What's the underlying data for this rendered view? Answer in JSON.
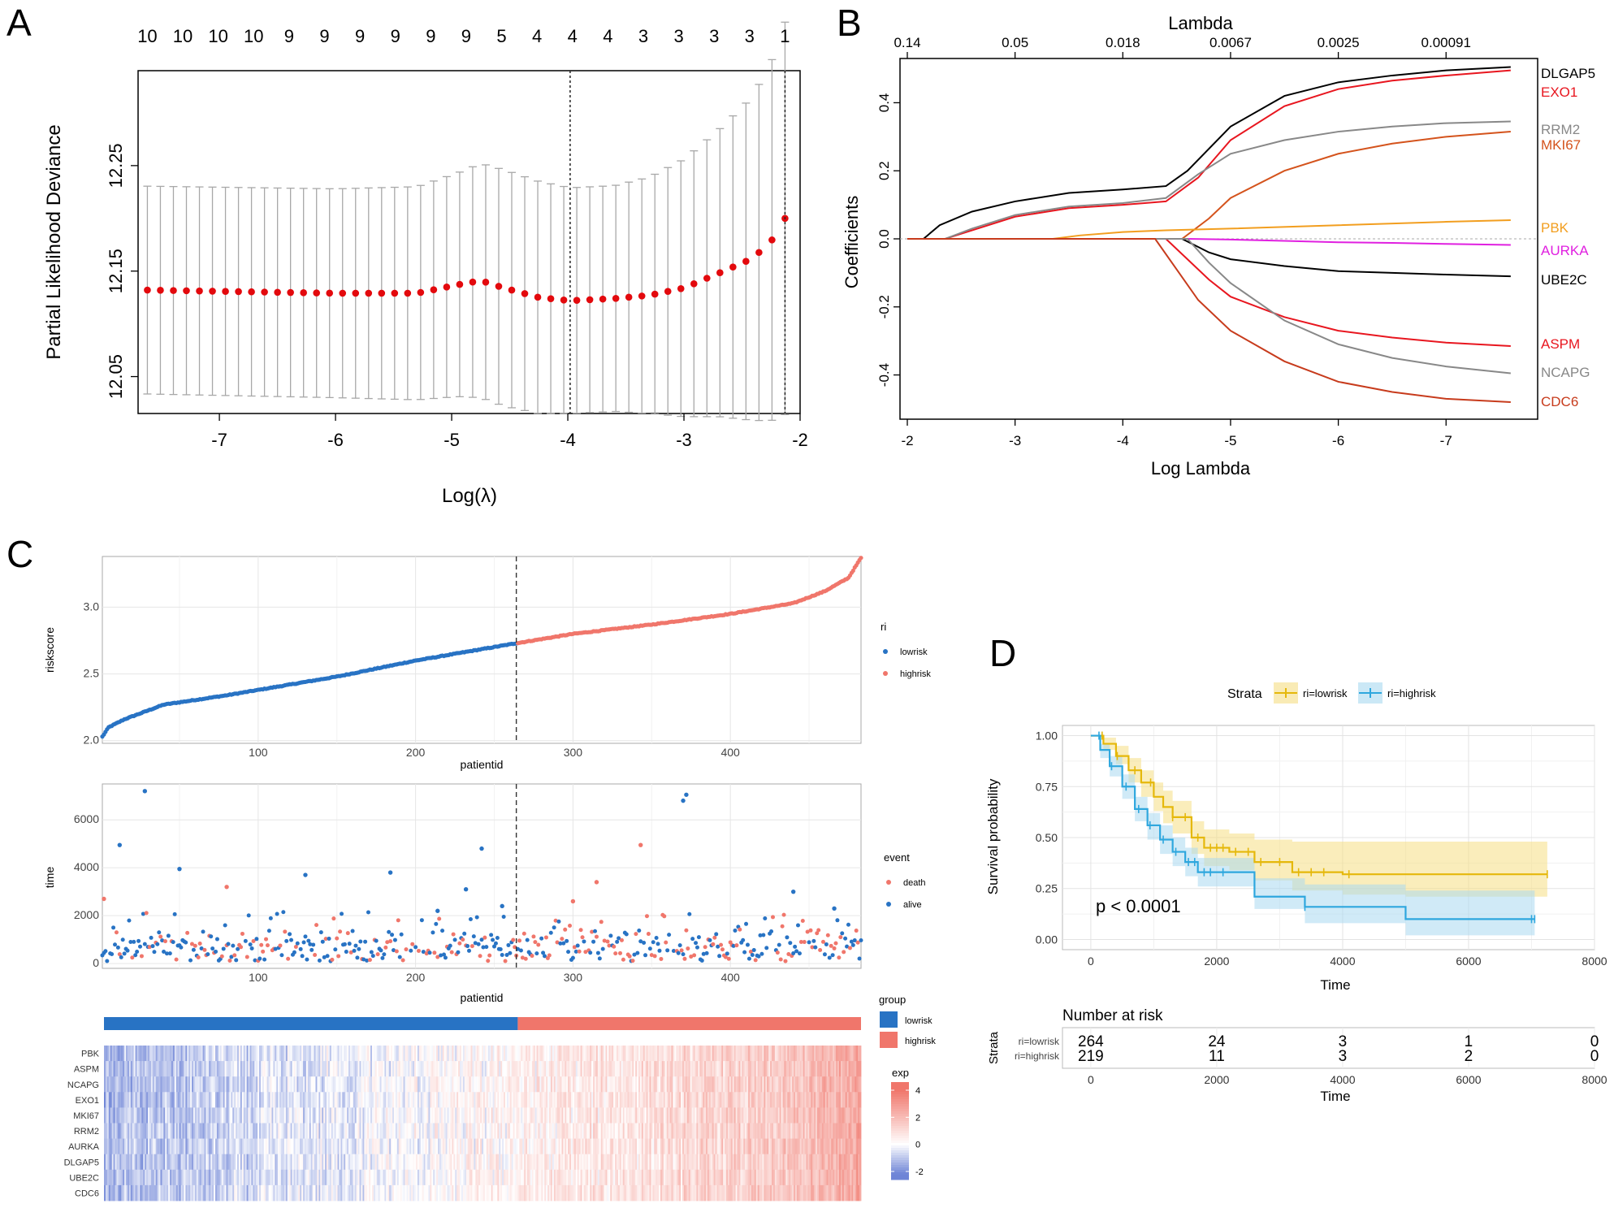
{
  "panels": {
    "a": "A",
    "b": "B",
    "c": "C",
    "d": "D"
  },
  "chart_data": [
    {
      "id": "A",
      "type": "scatter",
      "subtype": "error-bar",
      "title": "",
      "xlabel": "Log(λ)",
      "ylabel": "Partial Likelihood Deviance",
      "xlim": [
        -7.7,
        -2.0
      ],
      "ylim": [
        12.015,
        12.34
      ],
      "xticks": [
        -7,
        -6,
        -5,
        -4,
        -3,
        -2
      ],
      "yticks": [
        12.05,
        12.15,
        12.25
      ],
      "yticklabels": [
        "12.05",
        "12.15",
        "12.25"
      ],
      "top_counts": [
        "10",
        "10",
        "10",
        "10",
        "9",
        "9",
        "9",
        "9",
        "9",
        "9",
        "5",
        "4",
        "4",
        "4",
        "3",
        "3",
        "3",
        "3",
        "1"
      ],
      "vlines": [
        -3.98,
        -2.13
      ],
      "x_start": -7.62,
      "x_end": -2.13,
      "n_points": 50,
      "anchors_x": [
        -7.62,
        -6.0,
        -5.3,
        -4.95,
        -4.75,
        -4.55,
        -4.25,
        -3.98,
        -3.6,
        -3.3,
        -3.0,
        -2.7,
        -2.45,
        -2.3,
        -2.2,
        -2.13
      ],
      "anchors_mean": [
        12.132,
        12.129,
        12.129,
        12.137,
        12.141,
        12.134,
        12.125,
        12.122,
        12.124,
        12.127,
        12.134,
        12.148,
        12.16,
        12.172,
        12.185,
        12.2
      ],
      "anchors_err": [
        0.0985,
        0.099,
        0.101,
        0.106,
        0.111,
        0.112,
        0.11,
        0.107,
        0.107,
        0.112,
        0.122,
        0.136,
        0.151,
        0.164,
        0.176,
        0.186
      ]
    },
    {
      "id": "B",
      "type": "line",
      "title": "",
      "xlabel": "Log Lambda",
      "ylabel": "Coefficients",
      "top_axis_label": "Lambda",
      "xlim": [
        -2.0,
        -7.85
      ],
      "ylim": [
        -0.53,
        0.53
      ],
      "xticks": [
        -2,
        -3,
        -4,
        -5,
        -6,
        -7
      ],
      "yticks": [
        -0.4,
        -0.2,
        0.0,
        0.2,
        0.4
      ],
      "yticklabels": [
        "-0.4",
        "-0.2",
        "0.0",
        "0.2",
        "0.4"
      ],
      "top_ticks": [
        -2.0,
        -3.0,
        -4.0,
        -5.0,
        -6.0,
        -7.0
      ],
      "top_ticklabels": [
        "0.14",
        "0.05",
        "0.018",
        "0.0067",
        "0.0025",
        "0.00091"
      ],
      "series": [
        {
          "name": "DLGAP5",
          "color": "#000000",
          "x": [
            -2.15,
            -2.3,
            -2.6,
            -3.0,
            -3.5,
            -4.0,
            -4.4,
            -4.6,
            -5.0,
            -5.5,
            -6.0,
            -6.5,
            -7.0,
            -7.6
          ],
          "y": [
            0,
            0.04,
            0.08,
            0.11,
            0.135,
            0.145,
            0.155,
            0.2,
            0.33,
            0.42,
            0.46,
            0.48,
            0.495,
            0.505
          ]
        },
        {
          "name": "EXO1",
          "color": "#e8161f",
          "x": [
            -2.35,
            -2.6,
            -3.0,
            -3.5,
            -4.0,
            -4.4,
            -4.7,
            -5.0,
            -5.5,
            -6.0,
            -6.5,
            -7.0,
            -7.6
          ],
          "y": [
            0,
            0.025,
            0.065,
            0.09,
            0.1,
            0.11,
            0.18,
            0.29,
            0.39,
            0.44,
            0.465,
            0.48,
            0.495
          ]
        },
        {
          "name": "RRM2",
          "color": "#888888",
          "x": [
            -2.35,
            -2.6,
            -3.0,
            -3.5,
            -4.0,
            -4.4,
            -4.7,
            -5.0,
            -5.5,
            -6.0,
            -6.5,
            -7.0,
            -7.6
          ],
          "y": [
            0,
            0.03,
            0.07,
            0.095,
            0.105,
            0.12,
            0.19,
            0.25,
            0.29,
            0.315,
            0.33,
            0.34,
            0.345
          ]
        },
        {
          "name": "MKI67",
          "color": "#d4531c",
          "x": [
            -4.55,
            -4.8,
            -5.0,
            -5.5,
            -6.0,
            -6.5,
            -7.0,
            -7.6
          ],
          "y": [
            0,
            0.06,
            0.12,
            0.2,
            0.25,
            0.28,
            0.3,
            0.315
          ]
        },
        {
          "name": "PBK",
          "color": "#f29e1f",
          "x": [
            -3.35,
            -3.6,
            -4.0,
            -4.4,
            -5.0,
            -6.0,
            -7.0,
            -7.6
          ],
          "y": [
            0,
            0.01,
            0.02,
            0.025,
            0.03,
            0.04,
            0.05,
            0.055
          ]
        },
        {
          "name": "AURKA",
          "color": "#e020e0",
          "x": [
            -4.6,
            -5.0,
            -5.5,
            -6.0,
            -6.5,
            -7.0,
            -7.6
          ],
          "y": [
            0,
            -0.002,
            -0.006,
            -0.01,
            -0.012,
            -0.015,
            -0.018
          ]
        },
        {
          "name": "UBE2C",
          "color": "#000000",
          "x": [
            -4.55,
            -4.8,
            -5.0,
            -5.5,
            -6.0,
            -6.5,
            -7.0,
            -7.6
          ],
          "y": [
            0,
            -0.04,
            -0.06,
            -0.08,
            -0.095,
            -0.1,
            -0.105,
            -0.11
          ]
        },
        {
          "name": "ASPM",
          "color": "#e8161f",
          "x": [
            -4.4,
            -4.6,
            -4.8,
            -5.0,
            -5.5,
            -6.0,
            -6.5,
            -7.0,
            -7.6
          ],
          "y": [
            0,
            -0.06,
            -0.12,
            -0.17,
            -0.23,
            -0.27,
            -0.29,
            -0.305,
            -0.315
          ]
        },
        {
          "name": "NCAPG",
          "color": "#888888",
          "x": [
            -4.6,
            -4.8,
            -5.0,
            -5.5,
            -6.0,
            -6.5,
            -7.0,
            -7.6
          ],
          "y": [
            0,
            -0.07,
            -0.13,
            -0.24,
            -0.31,
            -0.35,
            -0.375,
            -0.395
          ]
        },
        {
          "name": "CDC6",
          "color": "#c73b1c",
          "x": [
            -4.3,
            -4.5,
            -4.7,
            -5.0,
            -5.5,
            -6.0,
            -6.5,
            -7.0,
            -7.6
          ],
          "y": [
            0,
            -0.09,
            -0.18,
            -0.27,
            -0.36,
            -0.42,
            -0.45,
            -0.47,
            -0.48
          ]
        }
      ]
    },
    {
      "id": "C-top",
      "type": "scatter",
      "xlabel": "patientid",
      "ylabel": "riskscore",
      "xlim": [
        1,
        483
      ],
      "ylim": [
        1.98,
        3.38
      ],
      "xticks": [
        100,
        200,
        300,
        400
      ],
      "yticks": [
        2.0,
        2.5,
        3.0
      ],
      "yticklabels": [
        "2.0",
        "2.5",
        "3.0"
      ],
      "cutoff": 264,
      "legend_title": "ri",
      "legend": [
        {
          "label": "lowrisk",
          "color": "#2873c4"
        },
        {
          "label": "highrisk",
          "color": "#f0766b"
        }
      ],
      "anchors_x": [
        1,
        5,
        15,
        40,
        80,
        150,
        200,
        264,
        300,
        350,
        400,
        440,
        460,
        475,
        483
      ],
      "anchors_y": [
        2.03,
        2.1,
        2.16,
        2.27,
        2.34,
        2.48,
        2.6,
        2.73,
        2.8,
        2.87,
        2.95,
        3.03,
        3.12,
        3.22,
        3.37
      ]
    },
    {
      "id": "C-middle",
      "type": "scatter",
      "xlabel": "patientid",
      "ylabel": "time",
      "xlim": [
        1,
        483
      ],
      "ylim": [
        -200,
        7500
      ],
      "xticks": [
        100,
        200,
        300,
        400
      ],
      "yticks": [
        0,
        2000,
        4000,
        6000
      ],
      "yticklabels": [
        "0",
        "2000",
        "4000",
        "6000"
      ],
      "cutoff": 264,
      "legend_title": "event",
      "legend": [
        {
          "label": "death",
          "color": "#f0766b"
        },
        {
          "label": "alive",
          "color": "#2873c4"
        }
      ],
      "highlights": [
        {
          "x": 28,
          "y": 7200,
          "event": "alive"
        },
        {
          "x": 372,
          "y": 7050,
          "event": "alive"
        },
        {
          "x": 370,
          "y": 6800,
          "event": "alive"
        },
        {
          "x": 12,
          "y": 4950,
          "event": "alive"
        },
        {
          "x": 343,
          "y": 4950,
          "event": "death"
        },
        {
          "x": 242,
          "y": 4800,
          "event": "alive"
        },
        {
          "x": 50,
          "y": 3950,
          "event": "alive"
        },
        {
          "x": 184,
          "y": 3800,
          "event": "alive"
        },
        {
          "x": 130,
          "y": 3700,
          "event": "alive"
        },
        {
          "x": 315,
          "y": 3400,
          "event": "death"
        },
        {
          "x": 80,
          "y": 3200,
          "event": "death"
        },
        {
          "x": 232,
          "y": 3100,
          "event": "alive"
        },
        {
          "x": 440,
          "y": 3000,
          "event": "alive"
        },
        {
          "x": 2,
          "y": 2700,
          "event": "death"
        },
        {
          "x": 300,
          "y": 2600,
          "event": "death"
        },
        {
          "x": 255,
          "y": 2400,
          "event": "alive"
        },
        {
          "x": 466,
          "y": 2300,
          "event": "alive"
        },
        {
          "x": 214,
          "y": 2200,
          "event": "alive"
        }
      ]
    },
    {
      "id": "C-heatmap",
      "type": "heatmap",
      "rows": [
        "PBK",
        "ASPM",
        "NCAPG",
        "EXO1",
        "MKI67",
        "RRM2",
        "AURKA",
        "DLGAP5",
        "UBE2C",
        "CDC6"
      ],
      "group_title": "group",
      "groups": [
        {
          "label": "lowrisk",
          "color": "#2873c4"
        },
        {
          "label": "highrisk",
          "color": "#f0766b"
        }
      ],
      "cutoff": 264,
      "n_columns": 483,
      "colorbar_title": "exp",
      "colorbar_ticks": [
        "4",
        "2",
        "0",
        "-2"
      ],
      "colorbar_range": [
        -2.6,
        4.6
      ],
      "colors": {
        "low": "#6e84d6",
        "mid": "#ffffff",
        "high": "#f0766b"
      }
    },
    {
      "id": "D",
      "type": "line",
      "subtype": "kaplan-meier",
      "xlabel": "Time",
      "ylabel": "Survival probability",
      "xlim": [
        -450,
        8000
      ],
      "ylim": [
        -0.05,
        1.05
      ],
      "xticks": [
        0,
        2000,
        4000,
        6000,
        8000
      ],
      "yticks": [
        0.0,
        0.25,
        0.5,
        0.75,
        1.0
      ],
      "yticklabels": [
        "0.00",
        "0.25",
        "0.50",
        "0.75",
        "1.00"
      ],
      "legend_title": "Strata",
      "pvalue": "p < 0.0001",
      "series": [
        {
          "name": "ri=lowrisk",
          "color": "#e5b80b",
          "band": "#f5de84",
          "x": [
            0,
            200,
            400,
            600,
            800,
            1000,
            1150,
            1300,
            1600,
            1800,
            2200,
            2600,
            3200,
            4000,
            5000,
            7200
          ],
          "y": [
            1.0,
            0.96,
            0.9,
            0.83,
            0.77,
            0.7,
            0.65,
            0.6,
            0.5,
            0.45,
            0.43,
            0.38,
            0.33,
            0.32,
            0.32,
            0.32
          ],
          "lower": [
            1.0,
            0.93,
            0.86,
            0.77,
            0.7,
            0.63,
            0.57,
            0.52,
            0.42,
            0.36,
            0.34,
            0.29,
            0.24,
            0.22,
            0.21,
            0.21
          ],
          "upper": [
            1.0,
            0.99,
            0.95,
            0.89,
            0.83,
            0.77,
            0.73,
            0.68,
            0.58,
            0.54,
            0.52,
            0.49,
            0.48,
            0.48,
            0.48,
            0.48
          ]
        },
        {
          "name": "ri=highrisk",
          "color": "#2ea7de",
          "band": "#a9d8f0",
          "x": [
            0,
            150,
            300,
            500,
            700,
            900,
            1100,
            1300,
            1500,
            1700,
            2600,
            3400,
            5000,
            7000
          ],
          "y": [
            1.0,
            0.93,
            0.85,
            0.75,
            0.64,
            0.56,
            0.49,
            0.43,
            0.38,
            0.33,
            0.21,
            0.16,
            0.1,
            0.1
          ],
          "lower": [
            1.0,
            0.89,
            0.8,
            0.69,
            0.58,
            0.49,
            0.42,
            0.36,
            0.31,
            0.26,
            0.15,
            0.08,
            0.02,
            0.02
          ],
          "upper": [
            1.0,
            0.96,
            0.9,
            0.81,
            0.7,
            0.62,
            0.56,
            0.5,
            0.45,
            0.4,
            0.3,
            0.27,
            0.24,
            0.24
          ]
        }
      ],
      "risk_table": {
        "title": "Number at risk",
        "ylabel": "Strata",
        "xlabel": "Time",
        "times": [
          0,
          2000,
          4000,
          6000,
          8000
        ],
        "rows": [
          {
            "label": "ri=lowrisk",
            "color": "#e5b80b",
            "counts": [
              "264",
              "24",
              "3",
              "1",
              "0"
            ]
          },
          {
            "label": "ri=highrisk",
            "color": "#2ea7de",
            "counts": [
              "219",
              "11",
              "3",
              "2",
              "0"
            ]
          }
        ]
      }
    }
  ]
}
